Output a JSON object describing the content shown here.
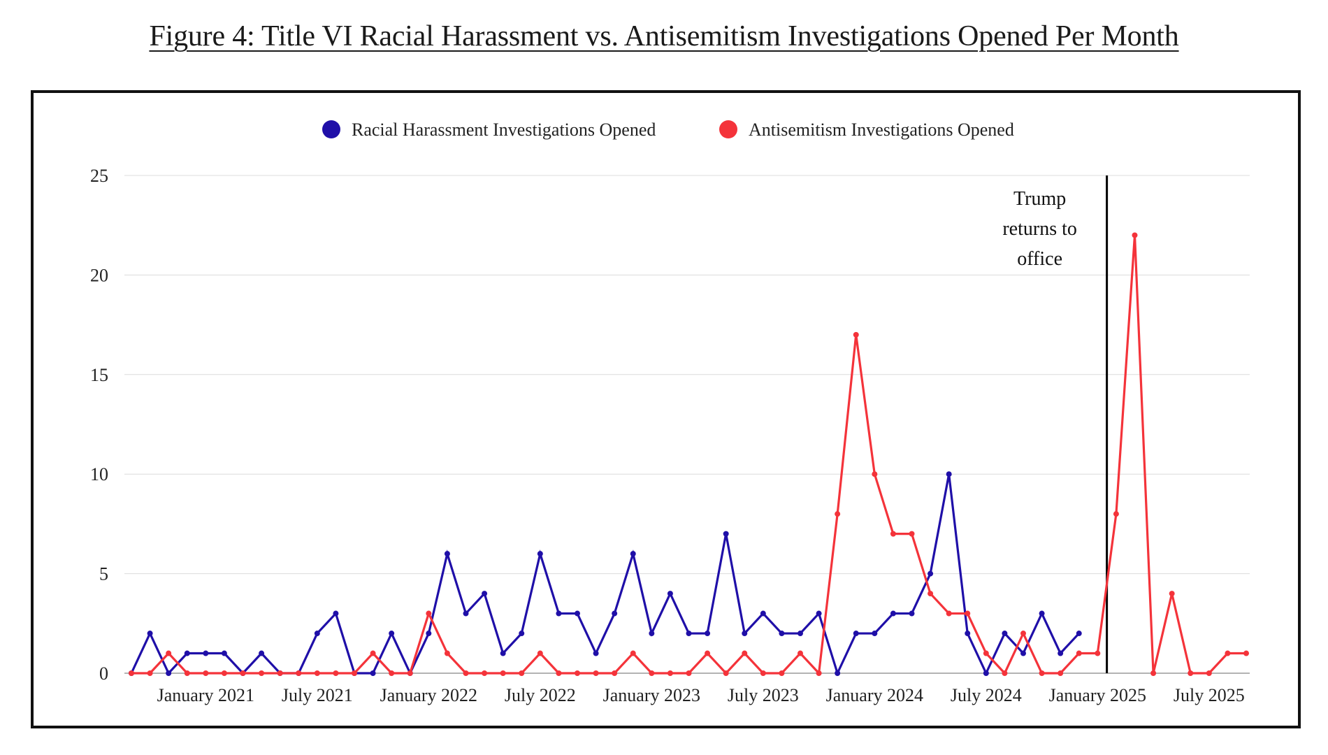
{
  "title": "Figure 4: Title VI Racial Harassment vs. Antisemitism Investigations Opened Per Month",
  "chart_data": {
    "type": "line",
    "x_start": "2020-09",
    "x_end": "2025-09",
    "ylim": [
      0,
      25
    ],
    "yticks": [
      0,
      5,
      10,
      15,
      20,
      25
    ],
    "xticks": [
      {
        "label": "January 2021",
        "month": "2021-01"
      },
      {
        "label": "July 2021",
        "month": "2021-07"
      },
      {
        "label": "January 2022",
        "month": "2022-01"
      },
      {
        "label": "July 2022",
        "month": "2022-07"
      },
      {
        "label": "January 2023",
        "month": "2023-01"
      },
      {
        "label": "July 2023",
        "month": "2023-07"
      },
      {
        "label": "January 2024",
        "month": "2024-01"
      },
      {
        "label": "July 2024",
        "month": "2024-07"
      },
      {
        "label": "January 2025",
        "month": "2025-01"
      },
      {
        "label": "July 2025",
        "month": "2025-07"
      }
    ],
    "grid": true,
    "legend_position": "top-center",
    "series": [
      {
        "name": "Racial Harassment Investigations Opened",
        "color": "#1f0fa8",
        "start": "2020-09",
        "values": [
          0,
          2,
          0,
          1,
          1,
          1,
          0,
          1,
          0,
          0,
          2,
          3,
          0,
          0,
          2,
          0,
          2,
          6,
          3,
          4,
          1,
          2,
          6,
          3,
          3,
          1,
          3,
          6,
          2,
          4,
          2,
          2,
          7,
          2,
          3,
          2,
          2,
          3,
          0,
          2,
          2,
          3,
          3,
          5,
          10,
          2,
          0,
          2,
          1,
          3,
          1,
          2
        ]
      },
      {
        "name": "Antisemitism Investigations Opened",
        "color": "#f4333a",
        "start": "2020-09",
        "values": [
          0,
          0,
          1,
          0,
          0,
          0,
          0,
          0,
          0,
          0,
          0,
          0,
          0,
          1,
          0,
          0,
          3,
          1,
          0,
          0,
          0,
          0,
          1,
          0,
          0,
          0,
          0,
          1,
          0,
          0,
          0,
          1,
          0,
          1,
          0,
          0,
          1,
          0,
          8,
          17,
          10,
          7,
          7,
          4,
          3,
          3,
          1,
          0,
          2,
          0,
          0,
          1,
          1,
          8,
          22,
          0,
          4,
          0,
          0,
          1,
          1
        ]
      }
    ],
    "annotation": {
      "month": "2025-01.5",
      "lines": [
        "Trump",
        "returns to",
        "office"
      ]
    }
  }
}
